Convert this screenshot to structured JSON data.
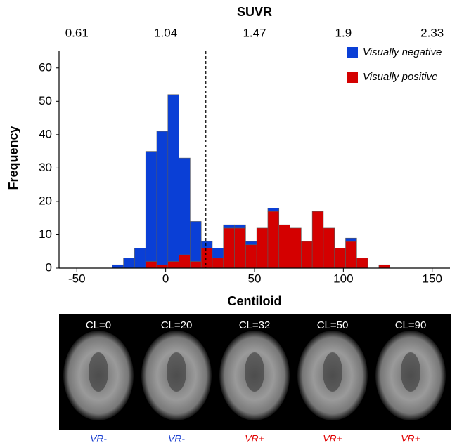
{
  "chart_data": {
    "type": "histogram",
    "x2label": "SUVR",
    "xlabel": "Centiloid",
    "ylabel": "Frequency",
    "bins": [
      -30,
      -23.75,
      -17.5,
      -11.25,
      -5,
      1.25,
      7.5,
      13.75,
      20,
      26.25,
      32.5,
      38.75,
      45,
      51.25,
      57.5,
      63.75,
      70,
      76.25,
      82.5,
      88.75,
      95,
      101.25,
      107.5,
      113.75,
      120,
      126.25
    ],
    "series": [
      {
        "name": "Visually negative",
        "color": "#0a3fd6",
        "values": [
          1,
          3,
          6,
          33,
          40,
          50,
          29,
          12,
          2,
          3,
          1,
          1,
          1,
          0,
          1,
          0,
          0,
          0,
          0,
          0,
          0,
          1,
          0,
          0,
          0
        ]
      },
      {
        "name": "Visually positive",
        "color": "#d40000",
        "values": [
          0,
          0,
          0,
          2,
          1,
          2,
          4,
          2,
          6,
          3,
          12,
          12,
          7,
          12,
          17,
          13,
          12,
          8,
          17,
          12,
          6,
          8,
          3,
          0,
          1
        ]
      }
    ],
    "stacked": true,
    "threshold_x": 22.6,
    "xlim": [
      -60,
      160
    ],
    "xticks": [
      -50,
      0,
      50,
      100,
      150
    ],
    "x2lim": [
      0.524,
      2.416
    ],
    "x2ticks": [
      0.61,
      1.04,
      1.47,
      1.9,
      2.33
    ],
    "ylim": [
      0,
      65
    ],
    "yticks": [
      0,
      10,
      20,
      30,
      40,
      50,
      60
    ],
    "legend": "top-right"
  },
  "images": [
    {
      "label": "CL=0",
      "caption": "VR-",
      "caption_color": "#1a3fd0"
    },
    {
      "label": "CL=20",
      "caption": "VR-",
      "caption_color": "#1a3fd0"
    },
    {
      "label": "CL=32",
      "caption": "VR+",
      "caption_color": "#e00000"
    },
    {
      "label": "CL=50",
      "caption": "VR+",
      "caption_color": "#e00000"
    },
    {
      "label": "CL=90",
      "caption": "VR+",
      "caption_color": "#e00000"
    }
  ]
}
